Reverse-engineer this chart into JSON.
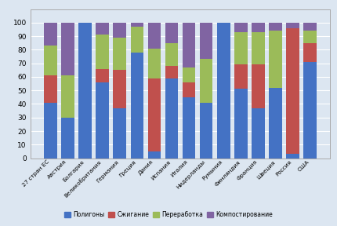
{
  "categories": [
    "27 стран ЕС",
    "Австрия",
    "Болгария",
    "Великобритания",
    "Германия",
    "Греция",
    "Дания",
    "Испания",
    "Италия",
    "Нидерланды",
    "Румыния",
    "Финляндия",
    "Франция",
    "Швеция",
    "Россия",
    "США"
  ],
  "polygons": [
    41,
    30,
    100,
    56,
    37,
    78,
    5,
    59,
    45,
    41,
    100,
    51,
    37,
    52,
    3,
    71
  ],
  "burning": [
    20,
    0,
    0,
    10,
    28,
    0,
    54,
    9,
    11,
    0,
    0,
    18,
    32,
    0,
    93,
    14
  ],
  "recycling": [
    22,
    31,
    0,
    25,
    24,
    19,
    22,
    17,
    11,
    32,
    0,
    24,
    24,
    42,
    0,
    9
  ],
  "composting": [
    17,
    39,
    0,
    9,
    11,
    3,
    19,
    15,
    33,
    27,
    0,
    7,
    7,
    6,
    4,
    6
  ],
  "color_polygons": "#4472c4",
  "color_burning": "#c0504d",
  "color_recycling": "#9bbb59",
  "color_composting": "#8064a2",
  "legend_labels": [
    "Полигоны",
    "Сжигание",
    "Переработка",
    "Компостирование"
  ],
  "background_color": "#dce6f1",
  "grid_color": "#ffffff",
  "bar_width": 0.75
}
